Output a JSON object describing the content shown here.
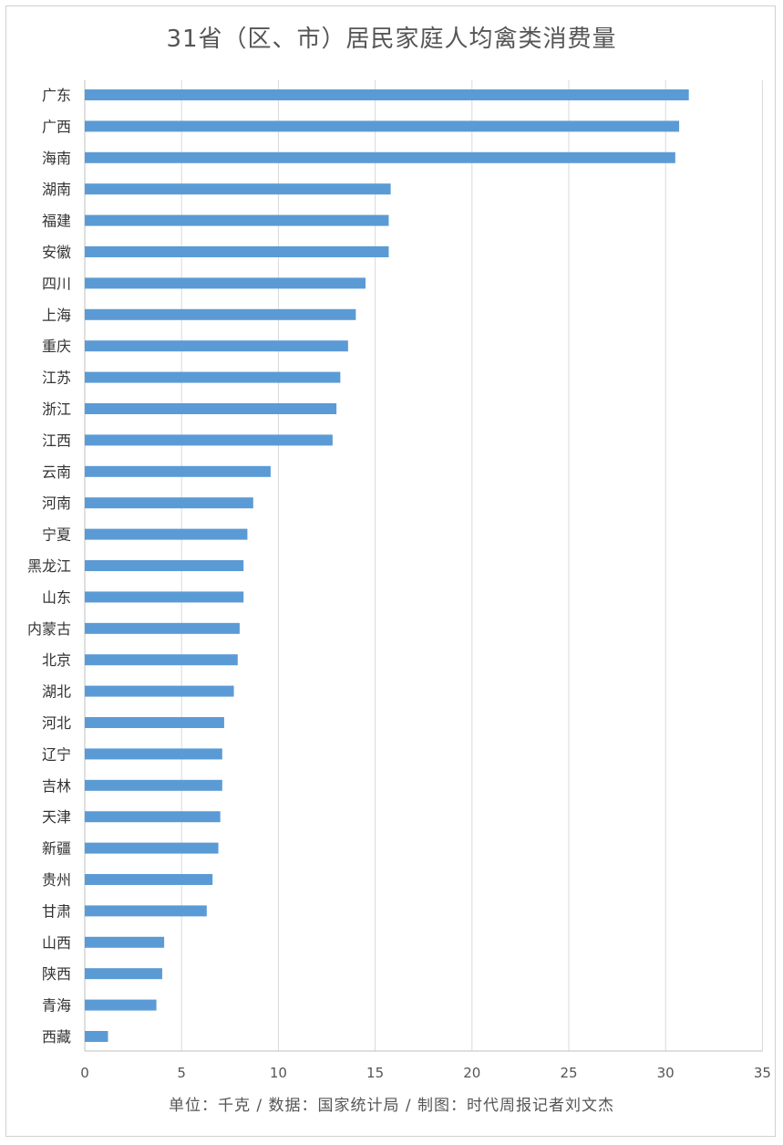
{
  "title": "31省（区、市）居民家庭人均禽类消费量",
  "footer": "单位：千克 / 数据：国家统计局 / 制图：时代周报记者刘文杰",
  "colors": {
    "bar": "#5b9bd5",
    "grid": "#d9d9d9",
    "axis": "#bfbfbf",
    "text": "#555555"
  },
  "chart_data": {
    "type": "bar",
    "orientation": "horizontal",
    "title": "31省（区、市）居民家庭人均禽类消费量",
    "xlim": [
      0,
      35
    ],
    "xticks": [
      "0",
      "5",
      "10",
      "15",
      "20",
      "25",
      "30",
      "35"
    ],
    "grid": true,
    "categories": [
      "广东",
      "广西",
      "海南",
      "湖南",
      "福建",
      "安徽",
      "四川",
      "上海",
      "重庆",
      "江苏",
      "浙江",
      "江西",
      "云南",
      "河南",
      "宁夏",
      "黑龙江",
      "山东",
      "内蒙古",
      "北京",
      "湖北",
      "河北",
      "辽宁",
      "吉林",
      "天津",
      "新疆",
      "贵州",
      "甘肃",
      "山西",
      "陕西",
      "青海",
      "西藏"
    ],
    "values": [
      31.2,
      30.7,
      30.5,
      15.8,
      15.7,
      15.7,
      14.5,
      14.0,
      13.6,
      13.2,
      13.0,
      12.8,
      9.6,
      8.7,
      8.4,
      8.2,
      8.2,
      8.0,
      7.9,
      7.7,
      7.2,
      7.1,
      7.1,
      7.0,
      6.9,
      6.6,
      6.3,
      4.1,
      4.0,
      3.7,
      1.2
    ]
  }
}
